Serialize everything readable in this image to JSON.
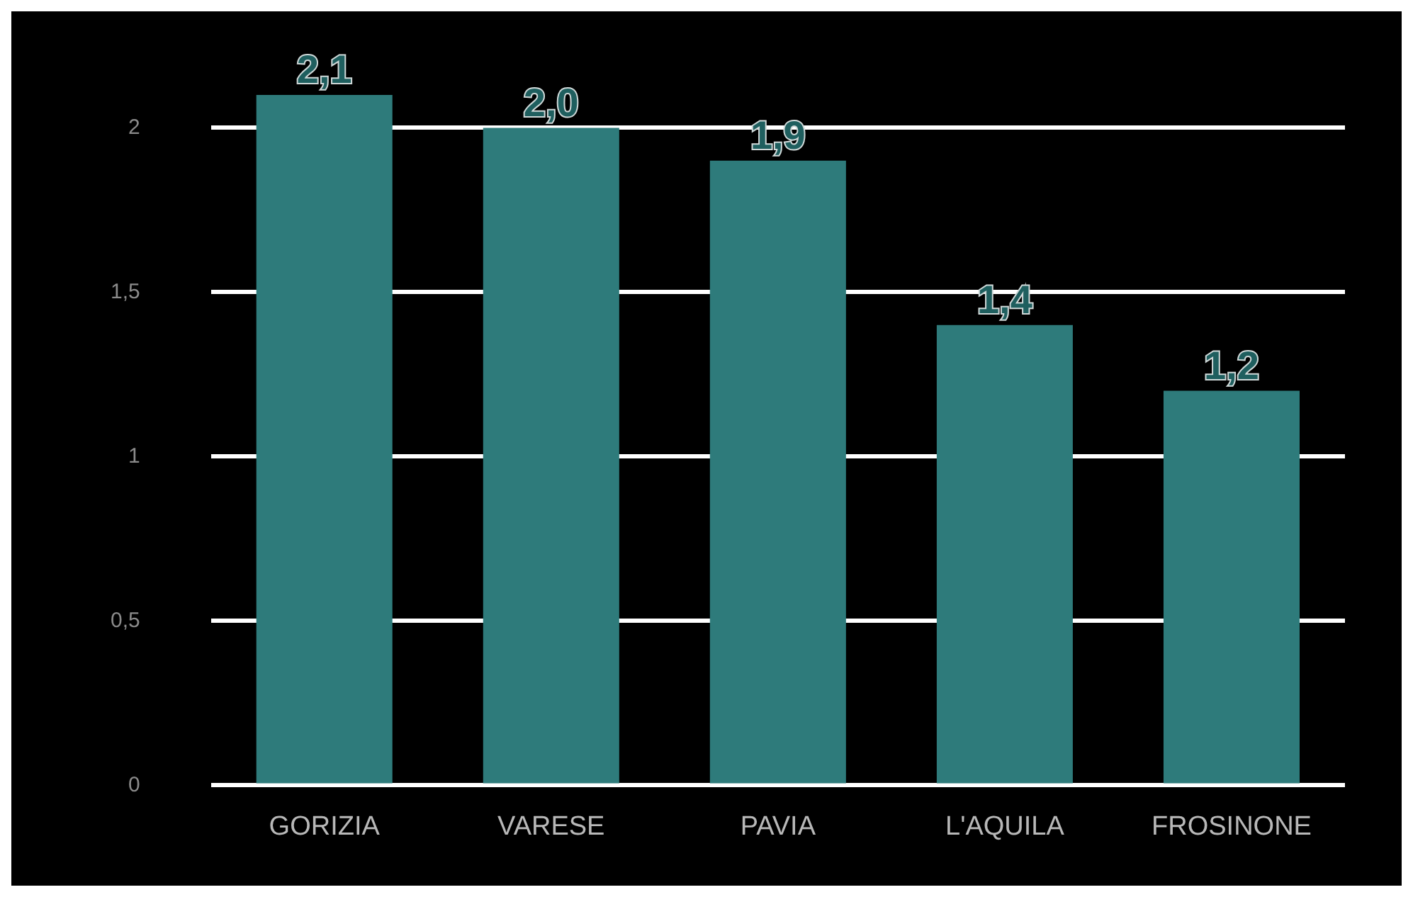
{
  "chart_data": {
    "type": "bar",
    "categories": [
      "GORIZIA",
      "VARESE",
      "PAVIA",
      "L'AQUILA",
      "FROSINONE"
    ],
    "values": [
      2.1,
      2.0,
      1.9,
      1.4,
      1.2
    ],
    "color": "#2e7b7b",
    "value_labels": [
      "2,1",
      "2,0",
      "1,9",
      "1,4",
      "1,2"
    ],
    "ylim": [
      0,
      2.1
    ],
    "yticks": [
      0,
      {
        "value": 0.5,
        "label": "0,5"
      },
      1,
      {
        "value": 1.5,
        "label": "1,5"
      },
      2
    ],
    "grid": "y"
  }
}
